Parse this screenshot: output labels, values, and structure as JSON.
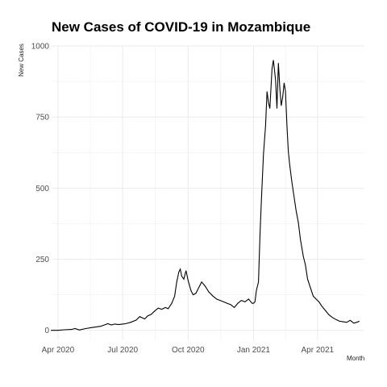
{
  "chart_data": {
    "type": "line",
    "title": "New Cases of COVID-19 in Mozambique",
    "xlabel": "Month",
    "ylabel": "New Cases",
    "x_tick_labels": [
      "Apr 2020",
      "Jul 2020",
      "Oct 2020",
      "Jan 2021",
      "Apr 2021"
    ],
    "x_tick_dates": [
      "2020-04-01",
      "2020-07-01",
      "2020-10-01",
      "2021-01-01",
      "2021-04-01"
    ],
    "y_ticks": [
      0,
      250,
      500,
      750,
      1000
    ],
    "xlim": [
      "2020-03-23",
      "2021-06-06"
    ],
    "ylim": [
      -35,
      1000
    ],
    "grid": true,
    "legend": "none",
    "line_color": "#000000",
    "grid_color": "#ebebeb",
    "series": [
      {
        "x": [
          "2020-03-22",
          "2020-04-01",
          "2020-04-10",
          "2020-04-20",
          "2020-04-25",
          "2020-05-01",
          "2020-05-10",
          "2020-05-20",
          "2020-05-31",
          "2020-06-10",
          "2020-06-15",
          "2020-06-20",
          "2020-06-25",
          "2020-07-01",
          "2020-07-05",
          "2020-07-12",
          "2020-07-20",
          "2020-07-25",
          "2020-08-01",
          "2020-08-05",
          "2020-08-10",
          "2020-08-15",
          "2020-08-20",
          "2020-08-25",
          "2020-08-30",
          "2020-09-03",
          "2020-09-08",
          "2020-09-12",
          "2020-09-15",
          "2020-09-18",
          "2020-09-20",
          "2020-09-22",
          "2020-09-25",
          "2020-09-28",
          "2020-10-01",
          "2020-10-05",
          "2020-10-08",
          "2020-10-12",
          "2020-10-16",
          "2020-10-20",
          "2020-10-25",
          "2020-10-30",
          "2020-11-05",
          "2020-11-10",
          "2020-11-15",
          "2020-11-20",
          "2020-11-25",
          "2020-11-30",
          "2020-12-05",
          "2020-12-10",
          "2020-12-15",
          "2020-12-20",
          "2020-12-25",
          "2020-12-30",
          "2021-01-01",
          "2021-01-03",
          "2021-01-05",
          "2021-01-08",
          "2021-01-10",
          "2021-01-12",
          "2021-01-15",
          "2021-01-18",
          "2021-01-20",
          "2021-01-22",
          "2021-01-24",
          "2021-01-27",
          "2021-01-29",
          "2021-02-01",
          "2021-02-03",
          "2021-02-05",
          "2021-02-07",
          "2021-02-09",
          "2021-02-11",
          "2021-02-13",
          "2021-02-15",
          "2021-02-17",
          "2021-02-19",
          "2021-02-21",
          "2021-02-24",
          "2021-02-27",
          "2021-03-02",
          "2021-03-05",
          "2021-03-08",
          "2021-03-12",
          "2021-03-15",
          "2021-03-18",
          "2021-03-22",
          "2021-03-26",
          "2021-03-30",
          "2021-04-03",
          "2021-04-07",
          "2021-04-12",
          "2021-04-17",
          "2021-04-22",
          "2021-04-27",
          "2021-05-02",
          "2021-05-07",
          "2021-05-12",
          "2021-05-17",
          "2021-05-22",
          "2021-05-26",
          "2021-05-30"
        ],
        "y": [
          0,
          0,
          2,
          3,
          6,
          1,
          6,
          10,
          14,
          23,
          19,
          22,
          20,
          22,
          23,
          28,
          36,
          48,
          40,
          50,
          56,
          68,
          78,
          74,
          80,
          76,
          95,
          120,
          170,
          205,
          215,
          190,
          180,
          210,
          175,
          140,
          125,
          130,
          150,
          170,
          155,
          135,
          120,
          110,
          105,
          100,
          95,
          90,
          80,
          95,
          105,
          100,
          110,
          95,
          95,
          100,
          140,
          170,
          330,
          450,
          620,
          720,
          840,
          800,
          780,
          920,
          950,
          880,
          780,
          940,
          850,
          790,
          820,
          870,
          840,
          720,
          630,
          580,
          520,
          470,
          420,
          380,
          320,
          260,
          230,
          180,
          150,
          120,
          110,
          100,
          85,
          70,
          55,
          45,
          38,
          32,
          30,
          28,
          35,
          25,
          28,
          32
        ]
      }
    ]
  }
}
